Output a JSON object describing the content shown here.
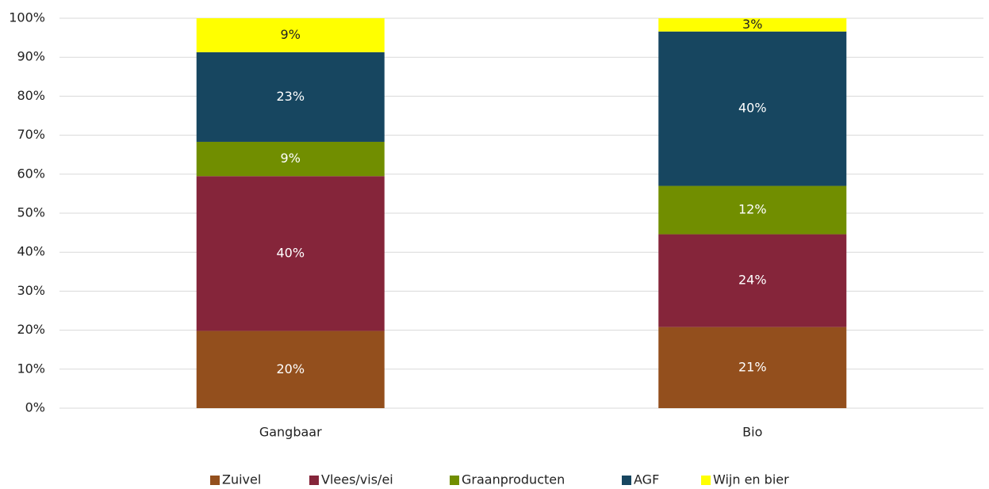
{
  "chart_data": {
    "type": "stacked_bar",
    "categories": [
      "Gangbaar",
      "Bio"
    ],
    "series": [
      {
        "name": "Zuivel",
        "color": "#934f1d",
        "values": [
          19.8,
          20.8
        ],
        "value_labels": [
          "20%",
          "21%"
        ]
      },
      {
        "name": "Vlees/vis/ei",
        "color": "#85253a",
        "values": [
          39.7,
          23.8
        ],
        "value_labels": [
          "40%",
          "24%"
        ]
      },
      {
        "name": "Graanproducten",
        "color": "#718e00",
        "values": [
          8.8,
          12.4
        ],
        "value_labels": [
          "9%",
          "12%"
        ]
      },
      {
        "name": "AGF",
        "color": "#174660",
        "values": [
          23.0,
          39.6
        ],
        "value_labels": [
          "23%",
          "40%"
        ]
      },
      {
        "name": "Wijn en bier",
        "color": "#ffff00",
        "values": [
          8.7,
          3.4
        ],
        "value_labels": [
          "9%",
          "3%"
        ]
      }
    ],
    "ylim": [
      0,
      100
    ],
    "yticks": [
      {
        "value": 0,
        "label": "0%"
      },
      {
        "value": 10,
        "label": "10%"
      },
      {
        "value": 20,
        "label": "20%"
      },
      {
        "value": 30,
        "label": "30%"
      },
      {
        "value": 40,
        "label": "40%"
      },
      {
        "value": 50,
        "label": "50%"
      },
      {
        "value": 60,
        "label": "60%"
      },
      {
        "value": 70,
        "label": "70%"
      },
      {
        "value": 80,
        "label": "80%"
      },
      {
        "value": 90,
        "label": "90%"
      },
      {
        "value": 100,
        "label": "100%"
      }
    ],
    "grid": true,
    "legend": "bottom"
  }
}
